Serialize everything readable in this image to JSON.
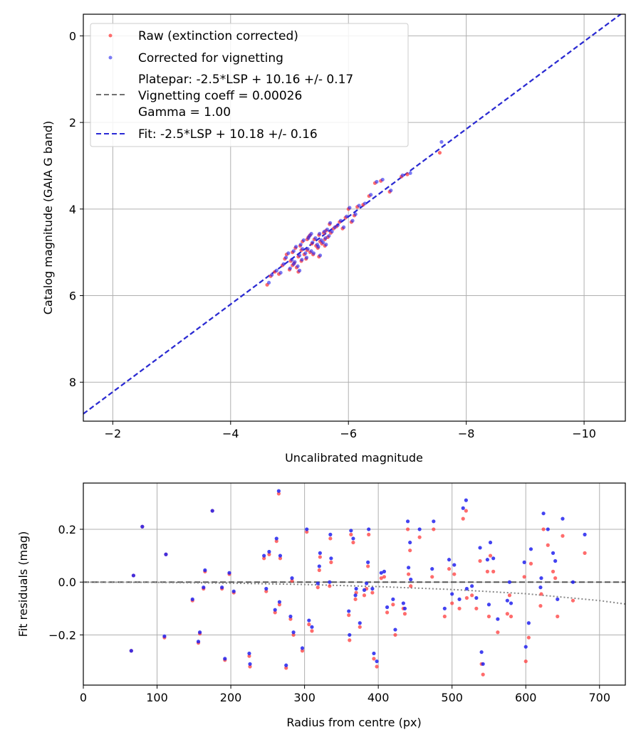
{
  "colors": {
    "raw": "#ff3b3b",
    "corrected": "#2222ee",
    "fit": "#2a2ad6",
    "platepar": "#707070",
    "grid": "#b0b0b0"
  },
  "chart_data": [
    {
      "type": "scatter",
      "xlabel": "Uncalibrated magnitude",
      "ylabel": "Catalog magnitude (GAIA G band)",
      "xlim": [
        -1.5,
        -10.7
      ],
      "ylim": [
        -0.5,
        8.9
      ],
      "xticks": [
        -2,
        -4,
        -6,
        -8,
        -10
      ],
      "xtick_labels": [
        "−2",
        "−4",
        "−6",
        "−8",
        "−10"
      ],
      "yticks": [
        0,
        2,
        4,
        6,
        8
      ],
      "ytick_labels": [
        "0",
        "2",
        "4",
        "6",
        "8"
      ],
      "grid": true,
      "legend_position": "top-left",
      "legend": {
        "raw": "Raw (extinction corrected)",
        "corrected": "Corrected for vignetting",
        "platepar": [
          "Platepar: -2.5*LSP + 10.16 +/- 0.17",
          "Vignetting coeff = 0.00026",
          "Gamma = 1.00"
        ],
        "fit": "Fit: -2.5*LSP + 10.18 +/- 0.16"
      },
      "fit_line": {
        "x": [
          -1.5,
          -10.7
        ],
        "y": [
          8.73,
          -0.58
        ]
      },
      "platepar_line": {
        "x": [
          -1.5,
          -10.7
        ],
        "y": [
          8.73,
          -0.58
        ]
      },
      "series": [
        {
          "name": "Raw (extinction corrected)",
          "x": [
            -4.62,
            -4.68,
            -4.75,
            -4.82,
            -4.88,
            -4.92,
            -4.95,
            -5.0,
            -5.02,
            -5.05,
            -5.08,
            -5.1,
            -5.12,
            -5.15,
            -5.18,
            -5.2,
            -5.22,
            -5.25,
            -5.28,
            -5.3,
            -5.32,
            -5.35,
            -5.38,
            -5.4,
            -5.42,
            -5.45,
            -5.48,
            -5.5,
            -5.52,
            -5.55,
            -5.58,
            -5.6,
            -5.62,
            -5.65,
            -5.68,
            -5.7,
            -5.75,
            -5.8,
            -5.85,
            -5.9,
            -5.95,
            -6.0,
            -6.05,
            -6.1,
            -6.15,
            -6.25,
            -6.35,
            -6.45,
            -6.55,
            -6.7,
            -6.9,
            -7.0,
            -7.55,
            -5.05,
            -5.2,
            -5.35,
            -5.5,
            -5.6,
            -5.15,
            -5.3
          ],
          "y": [
            5.75,
            5.55,
            5.45,
            5.5,
            5.3,
            5.15,
            5.05,
            5.4,
            5.2,
            5.0,
            5.25,
            4.9,
            5.35,
            5.1,
            4.85,
            5.2,
            4.75,
            5.05,
            5.15,
            4.95,
            4.65,
            5.0,
            4.8,
            5.05,
            4.7,
            4.85,
            4.9,
            4.6,
            4.75,
            4.8,
            4.55,
            4.7,
            4.5,
            4.65,
            4.35,
            4.55,
            4.45,
            4.4,
            4.3,
            4.45,
            4.2,
            4.0,
            4.3,
            4.15,
            3.95,
            3.9,
            3.7,
            3.4,
            3.35,
            3.6,
            3.25,
            3.2,
            2.7,
            5.3,
            4.95,
            4.6,
            5.1,
            4.85,
            5.45,
            4.7
          ]
        },
        {
          "name": "Corrected for vignetting",
          "x": [
            -4.65,
            -4.7,
            -4.78,
            -4.85,
            -4.9,
            -4.94,
            -4.98,
            -5.01,
            -5.04,
            -5.07,
            -5.09,
            -5.11,
            -5.14,
            -5.17,
            -5.19,
            -5.21,
            -5.24,
            -5.27,
            -5.29,
            -5.31,
            -5.34,
            -5.37,
            -5.39,
            -5.41,
            -5.44,
            -5.47,
            -5.49,
            -5.51,
            -5.54,
            -5.57,
            -5.59,
            -5.61,
            -5.64,
            -5.67,
            -5.69,
            -5.72,
            -5.77,
            -5.82,
            -5.87,
            -5.92,
            -5.97,
            -6.02,
            -6.07,
            -6.12,
            -6.18,
            -6.28,
            -6.38,
            -6.48,
            -6.58,
            -6.72,
            -6.92,
            -7.05,
            -7.58,
            -5.07,
            -5.22,
            -5.37,
            -5.52,
            -5.62,
            -5.17,
            -5.32
          ],
          "y": [
            5.7,
            5.52,
            5.42,
            5.47,
            5.27,
            5.12,
            5.02,
            5.37,
            5.17,
            4.97,
            5.22,
            4.87,
            5.32,
            5.07,
            4.82,
            5.17,
            4.72,
            5.02,
            5.12,
            4.92,
            4.62,
            4.97,
            4.77,
            5.02,
            4.67,
            4.82,
            4.87,
            4.57,
            4.72,
            4.77,
            4.52,
            4.67,
            4.47,
            4.62,
            4.32,
            4.52,
            4.42,
            4.37,
            4.27,
            4.42,
            4.17,
            3.97,
            4.27,
            4.12,
            3.92,
            3.87,
            3.67,
            3.37,
            3.32,
            3.57,
            3.22,
            3.17,
            2.45,
            5.27,
            4.92,
            4.57,
            5.07,
            4.82,
            5.42,
            4.67
          ]
        }
      ]
    },
    {
      "type": "scatter",
      "xlabel": "Radius from centre (px)",
      "ylabel": "Fit residuals (mag)",
      "xlim": [
        0,
        735
      ],
      "ylim": [
        -0.39,
        0.375
      ],
      "xticks": [
        0,
        100,
        200,
        300,
        400,
        500,
        600,
        700
      ],
      "xtick_labels": [
        "0",
        "100",
        "200",
        "300",
        "400",
        "500",
        "600",
        "700"
      ],
      "yticks": [
        -0.2,
        0.0,
        0.2
      ],
      "ytick_labels": [
        "−0.2",
        "0.0",
        "0.2"
      ],
      "grid": true,
      "zero_line": {
        "x": [
          0,
          735
        ],
        "y": [
          0,
          0
        ]
      },
      "vignetting_curve": {
        "x": [
          0,
          100,
          200,
          300,
          400,
          500,
          600,
          700,
          735
        ],
        "y": [
          0,
          -0.001,
          -0.004,
          -0.009,
          -0.017,
          -0.028,
          -0.044,
          -0.07,
          -0.083
        ]
      },
      "series": [
        {
          "name": "Raw",
          "x": [
            65,
            68,
            80,
            110,
            112,
            148,
            156,
            158,
            163,
            165,
            175,
            188,
            192,
            198,
            204,
            225,
            226,
            245,
            248,
            252,
            260,
            262,
            265,
            266,
            267,
            275,
            281,
            283,
            285,
            297,
            303,
            306,
            310,
            318,
            320,
            321,
            334,
            335,
            336,
            360,
            361,
            363,
            366,
            369,
            370,
            375,
            381,
            384,
            386,
            387,
            392,
            394,
            398,
            404,
            408,
            412,
            420,
            423,
            434,
            436,
            440,
            441,
            443,
            444,
            456,
            473,
            475,
            490,
            496,
            500,
            503,
            510,
            515,
            519,
            520,
            527,
            533,
            538,
            540,
            542,
            548,
            550,
            552,
            556,
            562,
            575,
            578,
            580,
            598,
            600,
            604,
            607,
            620,
            621,
            624,
            630,
            637,
            640,
            643,
            650,
            664,
            680
          ],
          "y": [
            -0.26,
            0.025,
            0.21,
            -0.21,
            0.105,
            -0.07,
            -0.23,
            -0.195,
            -0.025,
            0.04,
            0.27,
            -0.025,
            -0.295,
            0.03,
            -0.04,
            -0.28,
            -0.32,
            0.09,
            -0.035,
            0.105,
            -0.115,
            0.155,
            0.335,
            -0.085,
            0.09,
            -0.325,
            -0.14,
            0.005,
            -0.2,
            -0.26,
            0.19,
            -0.16,
            -0.185,
            -0.02,
            0.045,
            0.095,
            -0.015,
            0.165,
            0.075,
            -0.125,
            -0.22,
            0.18,
            0.15,
            -0.065,
            -0.04,
            -0.17,
            -0.05,
            -0.025,
            0.06,
            0.18,
            -0.04,
            -0.29,
            -0.32,
            0.015,
            0.02,
            -0.115,
            -0.085,
            -0.2,
            -0.1,
            -0.12,
            0.2,
            0.03,
            0.12,
            -0.015,
            0.17,
            0.02,
            0.2,
            -0.13,
            0.05,
            -0.08,
            0.03,
            -0.1,
            0.24,
            0.27,
            -0.06,
            -0.05,
            -0.1,
            0.08,
            -0.31,
            -0.35,
            0.04,
            -0.13,
            0.1,
            0.04,
            -0.19,
            -0.12,
            -0.05,
            -0.13,
            0.02,
            -0.3,
            -0.21,
            0.07,
            -0.09,
            -0.045,
            0.2,
            0.14,
            0.04,
            0.015,
            -0.13,
            0.175,
            -0.07,
            0.11
          ]
        },
        {
          "name": "Corrected",
          "x": [
            65,
            68,
            80,
            110,
            112,
            148,
            156,
            158,
            163,
            165,
            175,
            188,
            192,
            198,
            204,
            225,
            226,
            245,
            248,
            252,
            260,
            262,
            265,
            266,
            267,
            275,
            281,
            283,
            285,
            297,
            303,
            306,
            310,
            318,
            320,
            321,
            334,
            335,
            336,
            360,
            361,
            363,
            366,
            369,
            370,
            375,
            381,
            384,
            386,
            387,
            392,
            394,
            398,
            404,
            408,
            412,
            420,
            423,
            434,
            436,
            440,
            441,
            443,
            444,
            456,
            473,
            475,
            490,
            496,
            500,
            503,
            510,
            515,
            519,
            520,
            527,
            533,
            538,
            540,
            542,
            548,
            550,
            552,
            556,
            562,
            575,
            578,
            580,
            598,
            600,
            604,
            607,
            620,
            621,
            624,
            630,
            637,
            640,
            643,
            650,
            664,
            680
          ],
          "y": [
            -0.26,
            0.025,
            0.21,
            -0.205,
            0.105,
            -0.065,
            -0.225,
            -0.19,
            -0.02,
            0.045,
            0.27,
            -0.02,
            -0.29,
            0.035,
            -0.035,
            -0.27,
            -0.31,
            0.1,
            -0.025,
            0.115,
            -0.105,
            0.165,
            0.345,
            -0.075,
            0.1,
            -0.315,
            -0.13,
            0.015,
            -0.19,
            -0.25,
            0.2,
            -0.145,
            -0.17,
            -0.005,
            0.06,
            0.11,
            0.0,
            0.18,
            0.09,
            -0.11,
            -0.2,
            0.195,
            0.165,
            -0.05,
            -0.025,
            -0.155,
            -0.03,
            -0.005,
            0.075,
            0.2,
            -0.025,
            -0.27,
            -0.3,
            0.035,
            0.04,
            -0.095,
            -0.065,
            -0.18,
            -0.08,
            -0.1,
            0.23,
            0.055,
            0.15,
            0.01,
            0.2,
            0.05,
            0.23,
            -0.1,
            0.085,
            -0.045,
            0.065,
            -0.065,
            0.28,
            0.31,
            -0.025,
            -0.015,
            -0.06,
            0.13,
            -0.265,
            -0.31,
            0.085,
            -0.085,
            0.15,
            0.09,
            -0.14,
            -0.07,
            -0.0,
            -0.08,
            0.075,
            -0.245,
            -0.155,
            0.125,
            -0.02,
            0.015,
            0.26,
            0.2,
            0.11,
            0.08,
            -0.065,
            0.24,
            -0.0,
            0.18
          ]
        }
      ]
    }
  ]
}
